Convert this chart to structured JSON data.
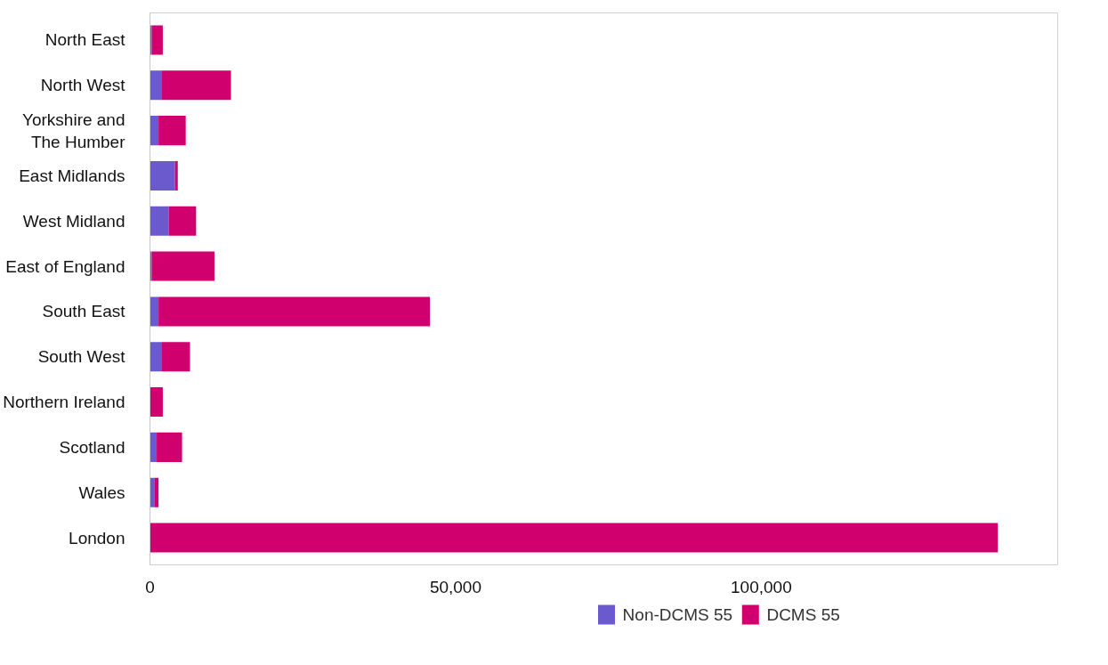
{
  "chart_data": {
    "type": "bar",
    "orientation": "horizontal",
    "stacked": true,
    "categories": [
      "North East",
      "North West",
      "Yorkshire and The Humber",
      "East Midlands",
      "West Midland",
      "East of England",
      "South East",
      "South West",
      "Northern Ireland",
      "Scotland",
      "Wales",
      "London"
    ],
    "series": [
      {
        "name": "Non-DCMS 55",
        "color": "#6a5acd",
        "values": [
          300,
          1850,
          1400,
          4100,
          3100,
          300,
          1400,
          1850,
          0,
          1100,
          700,
          0
        ]
      },
      {
        "name": "DCMS 55",
        "color": "#d1006f",
        "values": [
          1800,
          11400,
          4450,
          450,
          4450,
          10250,
          44400,
          4700,
          2100,
          4150,
          700,
          138700
        ]
      }
    ],
    "xlim": [
      0,
      148500
    ],
    "xticks": [
      {
        "value": 0,
        "label": "0"
      },
      {
        "value": 50000,
        "label": "50,000"
      },
      {
        "value": 100000,
        "label": "100,000"
      }
    ],
    "grid": false,
    "legend": "bottom"
  }
}
